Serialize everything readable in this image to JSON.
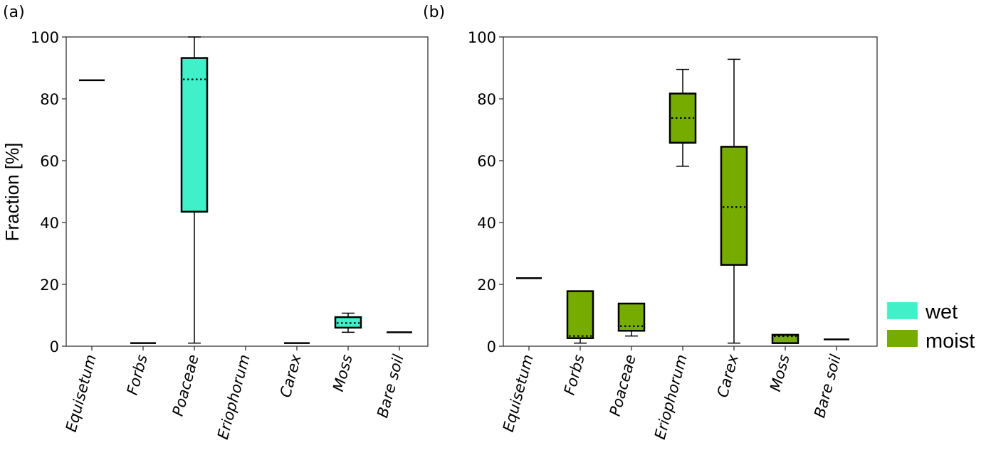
{
  "chart_data": [
    {
      "type": "box",
      "panel_label": "(a)",
      "series_name": "wet",
      "color": "#40F0C8",
      "ylabel": "Fraction [%]",
      "ylim": [
        0,
        100
      ],
      "yticks": [
        "0",
        "20",
        "40",
        "60",
        "80",
        "100"
      ],
      "categories": [
        "Equisetum",
        "Forbs",
        "Poaceae",
        "Eriophorum",
        "Carex",
        "Moss",
        "Bare soil"
      ],
      "boxes": [
        {
          "whislo": 86,
          "q1": 86,
          "med": 86,
          "q3": 86,
          "whishi": 86
        },
        {
          "whislo": 1,
          "q1": 1,
          "med": 1,
          "q3": 1,
          "whishi": 1
        },
        {
          "whislo": 1,
          "q1": 43.5,
          "med": 86.3,
          "q3": 93.2,
          "whishi": 100
        },
        null,
        {
          "whislo": 1,
          "q1": 1,
          "med": 1,
          "q3": 1,
          "whishi": 1
        },
        {
          "whislo": 4.5,
          "q1": 6,
          "med": 7.5,
          "q3": 9.4,
          "whishi": 10.7
        },
        {
          "whislo": 4.5,
          "q1": 4.5,
          "med": 4.5,
          "q3": 4.5,
          "whishi": 4.5
        }
      ]
    },
    {
      "type": "box",
      "panel_label": "(b)",
      "series_name": "moist",
      "color": "#76AC00",
      "ylim": [
        0,
        100
      ],
      "yticks": [
        "0",
        "20",
        "40",
        "60",
        "80",
        "100"
      ],
      "categories": [
        "Equisetum",
        "Forbs",
        "Poaceae",
        "Eriophorum",
        "Carex",
        "Moss",
        "Bare soil"
      ],
      "boxes": [
        {
          "whislo": 22,
          "q1": 22,
          "med": 22,
          "q3": 22,
          "whishi": 22
        },
        {
          "whislo": 1,
          "q1": 2.6,
          "med": 3.3,
          "q3": 17.8,
          "whishi": 17.8
        },
        {
          "whislo": 3.3,
          "q1": 5,
          "med": 6.5,
          "q3": 13.8,
          "whishi": 13.8
        },
        {
          "whislo": 58.2,
          "q1": 65.8,
          "med": 73.8,
          "q3": 81.7,
          "whishi": 89.5
        },
        {
          "whislo": 1,
          "q1": 26.3,
          "med": 45,
          "q3": 64.5,
          "whishi": 92.8
        },
        {
          "whislo": 1,
          "q1": 1,
          "med": 3.2,
          "q3": 3.7,
          "whishi": 3.7
        },
        {
          "whislo": 2.2,
          "q1": 2.2,
          "med": 2.2,
          "q3": 2.2,
          "whishi": 2.2
        }
      ]
    }
  ],
  "legend": {
    "placement": "right",
    "entries": [
      {
        "label": "wet",
        "color": "#40F0C8"
      },
      {
        "label": "moist",
        "color": "#76AC00"
      }
    ]
  }
}
